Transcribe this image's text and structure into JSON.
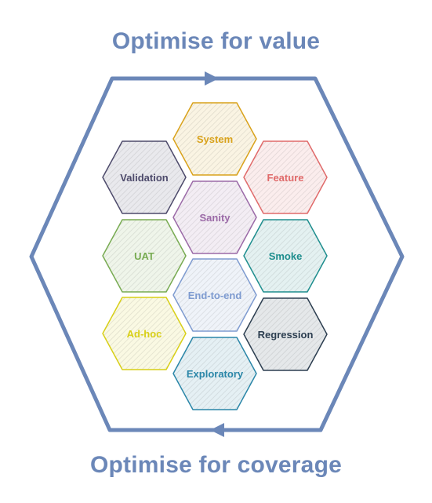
{
  "header": {
    "title": "Optimise for value"
  },
  "footer": {
    "title": "Optimise for coverage"
  },
  "colors": {
    "frame": "#6b87b8",
    "title": "#6b87b8"
  },
  "hexagons": [
    {
      "id": "system",
      "label": "System",
      "color": "#d9a21b"
    },
    {
      "id": "validation",
      "label": "Validation",
      "color": "#4d4a6b"
    },
    {
      "id": "feature",
      "label": "Feature",
      "color": "#e06a6a"
    },
    {
      "id": "sanity",
      "label": "Sanity",
      "color": "#9b6aa7"
    },
    {
      "id": "uat",
      "label": "UAT",
      "color": "#78ab52"
    },
    {
      "id": "smoke",
      "label": "Smoke",
      "color": "#1e8e8e"
    },
    {
      "id": "end-to-end",
      "label": "End-to-end",
      "color": "#7e9bd0"
    },
    {
      "id": "ad-hoc",
      "label": "Ad-hoc",
      "color": "#d8cf17"
    },
    {
      "id": "regression",
      "label": "Regression",
      "color": "#2c3e50"
    },
    {
      "id": "exploratory",
      "label": "Exploratory",
      "color": "#2a86a8"
    }
  ]
}
